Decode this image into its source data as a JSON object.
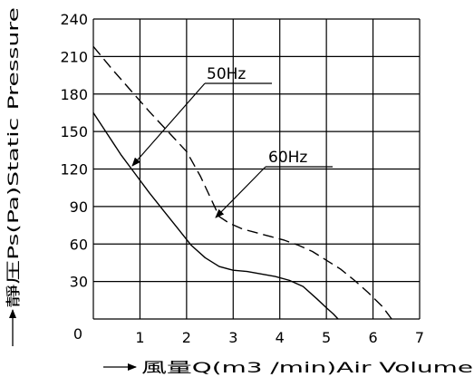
{
  "chart_data": {
    "type": "line",
    "xlabel": "風量Q(m3 /min)Air Volume",
    "ylabel": "靜圧Ps(Pa)Static Pressure",
    "xlim": [
      0,
      7
    ],
    "ylim": [
      0,
      240
    ],
    "x_ticks": [
      "0",
      "1",
      "2",
      "3",
      "4",
      "5",
      "6",
      "7"
    ],
    "y_ticks": [
      "0",
      "30",
      "60",
      "90",
      "120",
      "150",
      "180",
      "210",
      "240"
    ],
    "grid": true,
    "series": [
      {
        "name": "50Hz",
        "line_style": "solid",
        "x": [
          0,
          0.3,
          0.6,
          0.9,
          1.2,
          1.5,
          1.8,
          2.1,
          2.4,
          2.7,
          3.0,
          3.3,
          3.6,
          3.9,
          4.2,
          4.5,
          4.8,
          5.0,
          5.15,
          5.25
        ],
        "y": [
          165,
          148,
          131,
          116,
          101,
          87,
          73,
          59,
          49,
          42,
          39,
          38,
          36,
          34,
          31,
          26,
          16,
          9,
          4,
          0
        ]
      },
      {
        "name": "60Hz",
        "line_style": "dashed",
        "x": [
          0,
          0.4,
          0.8,
          1.2,
          1.6,
          2.0,
          2.3,
          2.5,
          2.7,
          2.9,
          3.2,
          3.5,
          3.8,
          4.1,
          4.4,
          4.7,
          5.0,
          5.3,
          5.6,
          5.9,
          6.2,
          6.4
        ],
        "y": [
          218,
          200,
          183,
          166,
          150,
          134,
          114,
          98,
          82,
          77,
          72,
          69,
          66,
          63,
          59,
          54,
          47,
          40,
          31,
          21,
          10,
          0
        ]
      }
    ],
    "annotations": [
      {
        "text": "50Hz",
        "target_series": "50Hz"
      },
      {
        "text": "60Hz",
        "target_series": "60Hz"
      }
    ]
  }
}
